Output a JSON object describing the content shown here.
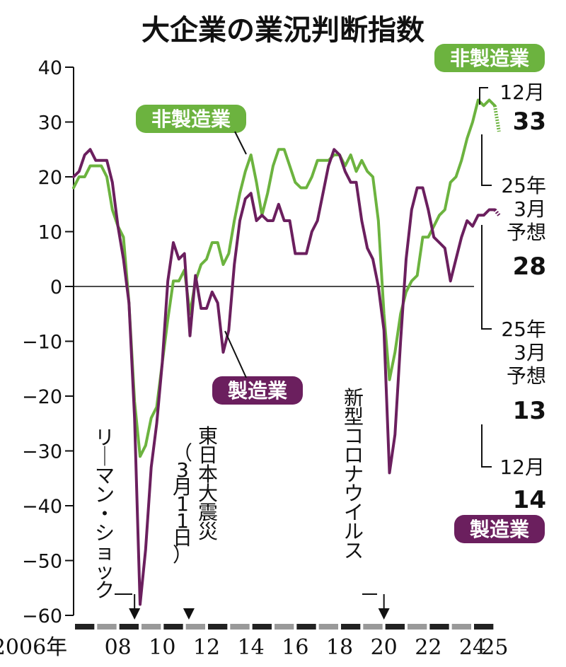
{
  "chart_data": {
    "type": "line",
    "title": "大企業の業況判断指数",
    "ylim": [
      -60,
      40
    ],
    "yticks": [
      40,
      30,
      20,
      10,
      0,
      -10,
      -20,
      -30,
      -40,
      -50,
      -60
    ],
    "ytick_labels": [
      "40",
      "30",
      "20",
      "10",
      "0",
      "-10",
      "-20",
      "-30",
      "-40",
      "-50",
      "-60"
    ],
    "xlim": [
      2006,
      2025.5
    ],
    "xticks": [
      2006,
      2008,
      2010,
      2012,
      2014,
      2016,
      2018,
      2020,
      2022,
      2024,
      2025
    ],
    "xtick_labels": [
      "2006年",
      "08",
      "10",
      "12",
      "14",
      "16",
      "18",
      "20",
      "22",
      "24",
      "25"
    ],
    "grid": false,
    "colors": {
      "manufacturing": "#6b1f5e",
      "non_manufacturing": "#6cb33f",
      "axis": "#111111"
    },
    "series": [
      {
        "name": "非製造業",
        "color": "#6cb33f",
        "points": [
          [
            2006.0,
            18
          ],
          [
            2006.25,
            20
          ],
          [
            2006.5,
            20
          ],
          [
            2006.75,
            22
          ],
          [
            2007.0,
            22
          ],
          [
            2007.25,
            22
          ],
          [
            2007.5,
            20
          ],
          [
            2007.75,
            14
          ],
          [
            2008.0,
            11
          ],
          [
            2008.25,
            9
          ],
          [
            2008.5,
            -3
          ],
          [
            2008.75,
            -21
          ],
          [
            2009.0,
            -31
          ],
          [
            2009.25,
            -29
          ],
          [
            2009.5,
            -24
          ],
          [
            2009.75,
            -22
          ],
          [
            2010.0,
            -14
          ],
          [
            2010.25,
            -6
          ],
          [
            2010.5,
            1
          ],
          [
            2010.75,
            1
          ],
          [
            2011.0,
            3
          ],
          [
            2011.25,
            -5
          ],
          [
            2011.5,
            1
          ],
          [
            2011.75,
            4
          ],
          [
            2012.0,
            5
          ],
          [
            2012.25,
            8
          ],
          [
            2012.5,
            8
          ],
          [
            2012.75,
            4
          ],
          [
            2013.0,
            6
          ],
          [
            2013.25,
            12
          ],
          [
            2013.5,
            17
          ],
          [
            2013.75,
            21
          ],
          [
            2014.0,
            24
          ],
          [
            2014.25,
            19
          ],
          [
            2014.5,
            13
          ],
          [
            2014.75,
            17
          ],
          [
            2015.0,
            22
          ],
          [
            2015.25,
            25
          ],
          [
            2015.5,
            25
          ],
          [
            2015.75,
            22
          ],
          [
            2016.0,
            19
          ],
          [
            2016.25,
            18
          ],
          [
            2016.5,
            18
          ],
          [
            2016.75,
            20
          ],
          [
            2017.0,
            23
          ],
          [
            2017.25,
            23
          ],
          [
            2017.5,
            23
          ],
          [
            2017.75,
            24
          ],
          [
            2018.0,
            24
          ],
          [
            2018.25,
            22
          ],
          [
            2018.5,
            24
          ],
          [
            2018.75,
            21
          ],
          [
            2019.0,
            23
          ],
          [
            2019.25,
            21
          ],
          [
            2019.5,
            20
          ],
          [
            2019.75,
            12
          ],
          [
            2020.0,
            -5
          ],
          [
            2020.25,
            -17
          ],
          [
            2020.5,
            -12
          ],
          [
            2020.75,
            -5
          ],
          [
            2021.0,
            -1
          ],
          [
            2021.25,
            1
          ],
          [
            2021.5,
            2
          ],
          [
            2021.75,
            9
          ],
          [
            2022.0,
            9
          ],
          [
            2022.25,
            11
          ],
          [
            2022.5,
            13
          ],
          [
            2022.75,
            14
          ],
          [
            2023.0,
            19
          ],
          [
            2023.25,
            20
          ],
          [
            2023.5,
            23
          ],
          [
            2023.75,
            27
          ],
          [
            2024.0,
            30
          ],
          [
            2024.25,
            34
          ],
          [
            2024.5,
            33
          ],
          [
            2024.75,
            34
          ],
          [
            2025.0,
            33
          ]
        ],
        "forecast": [
          [
            2025.0,
            33
          ],
          [
            2025.25,
            28
          ]
        ],
        "end_labels": {
          "dec_label": "12月",
          "dec_value": "33",
          "forecast_label_line1": "25年",
          "forecast_label_line2": "3月",
          "forecast_label_line3": "予想",
          "forecast_value": "28"
        }
      },
      {
        "name": "製造業",
        "color": "#6b1f5e",
        "points": [
          [
            2006.0,
            20
          ],
          [
            2006.25,
            21
          ],
          [
            2006.5,
            24
          ],
          [
            2006.75,
            25
          ],
          [
            2007.0,
            23
          ],
          [
            2007.25,
            23
          ],
          [
            2007.5,
            23
          ],
          [
            2007.75,
            19
          ],
          [
            2008.0,
            11
          ],
          [
            2008.25,
            5
          ],
          [
            2008.5,
            -3
          ],
          [
            2008.75,
            -24
          ],
          [
            2009.0,
            -58
          ],
          [
            2009.25,
            -48
          ],
          [
            2009.5,
            -33
          ],
          [
            2009.75,
            -25
          ],
          [
            2010.0,
            -14
          ],
          [
            2010.25,
            1
          ],
          [
            2010.5,
            8
          ],
          [
            2010.75,
            5
          ],
          [
            2011.0,
            6
          ],
          [
            2011.25,
            -9
          ],
          [
            2011.5,
            2
          ],
          [
            2011.75,
            -4
          ],
          [
            2012.0,
            -4
          ],
          [
            2012.25,
            -1
          ],
          [
            2012.5,
            -3
          ],
          [
            2012.75,
            -12
          ],
          [
            2013.0,
            -8
          ],
          [
            2013.25,
            4
          ],
          [
            2013.5,
            12
          ],
          [
            2013.75,
            16
          ],
          [
            2014.0,
            17
          ],
          [
            2014.25,
            12
          ],
          [
            2014.5,
            13
          ],
          [
            2014.75,
            12
          ],
          [
            2015.0,
            12
          ],
          [
            2015.25,
            15
          ],
          [
            2015.5,
            12
          ],
          [
            2015.75,
            12
          ],
          [
            2016.0,
            6
          ],
          [
            2016.25,
            6
          ],
          [
            2016.5,
            6
          ],
          [
            2016.75,
            10
          ],
          [
            2017.0,
            12
          ],
          [
            2017.25,
            17
          ],
          [
            2017.5,
            22
          ],
          [
            2017.75,
            25
          ],
          [
            2018.0,
            24
          ],
          [
            2018.25,
            21
          ],
          [
            2018.5,
            19
          ],
          [
            2018.75,
            19
          ],
          [
            2019.0,
            12
          ],
          [
            2019.25,
            7
          ],
          [
            2019.5,
            5
          ],
          [
            2019.75,
            0
          ],
          [
            2020.0,
            -8
          ],
          [
            2020.25,
            -34
          ],
          [
            2020.5,
            -27
          ],
          [
            2020.75,
            -10
          ],
          [
            2021.0,
            5
          ],
          [
            2021.25,
            14
          ],
          [
            2021.5,
            18
          ],
          [
            2021.75,
            18
          ],
          [
            2022.0,
            14
          ],
          [
            2022.25,
            9
          ],
          [
            2022.5,
            8
          ],
          [
            2022.75,
            7
          ],
          [
            2023.0,
            1
          ],
          [
            2023.25,
            5
          ],
          [
            2023.5,
            9
          ],
          [
            2023.75,
            12
          ],
          [
            2024.0,
            11
          ],
          [
            2024.25,
            13
          ],
          [
            2024.5,
            13
          ],
          [
            2024.75,
            14
          ],
          [
            2025.0,
            14
          ]
        ],
        "forecast": [
          [
            2025.0,
            14
          ],
          [
            2025.25,
            13
          ]
        ],
        "end_labels": {
          "dec_label": "12月",
          "dec_value": "14",
          "forecast_label_line1": "25年",
          "forecast_label_line2": "3月",
          "forecast_label_line3": "予想",
          "forecast_value": "13"
        }
      }
    ],
    "annotations": [
      {
        "text_lines": [
          "リーマン・ショック"
        ],
        "x": 2008.75
      },
      {
        "text_lines": [
          "東日本大震災",
          "（3月11日）"
        ],
        "x": 2011.2
      },
      {
        "text_lines": [
          "新型コロナウイルス"
        ],
        "x": 2020.0
      }
    ],
    "legend_badges": {
      "non_manufacturing_top": "非製造業",
      "non_manufacturing_mid": "非製造業",
      "manufacturing_mid": "製造業",
      "manufacturing_bottom": "製造業"
    }
  }
}
